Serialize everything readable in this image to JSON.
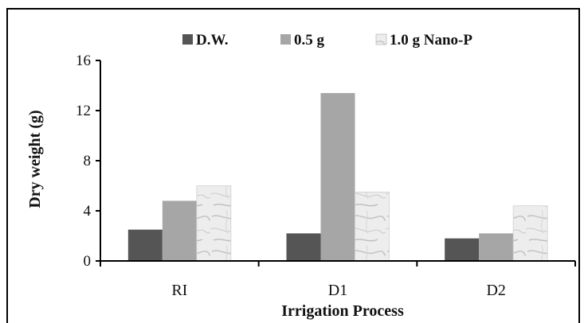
{
  "chart_data": {
    "type": "bar",
    "categories": [
      "RI",
      "D1",
      "D2"
    ],
    "series": [
      {
        "name": "D.W.",
        "values": [
          2.5,
          2.2,
          1.8
        ],
        "color": "#555555"
      },
      {
        "name": "0.5 g",
        "values": [
          4.8,
          13.4,
          2.2
        ],
        "color": "#a6a6a6"
      },
      {
        "name": "1.0 g Nano-P",
        "values": [
          6.0,
          5.5,
          4.4
        ],
        "color": "#ececec",
        "pattern": "marble"
      }
    ],
    "xlabel": "Irrigation Process",
    "ylabel": "Dry weight (g)",
    "ylim": [
      0,
      16
    ],
    "yticks": [
      "0",
      "4",
      "8",
      "12",
      "16"
    ],
    "grid": false,
    "legend_position": "top"
  }
}
